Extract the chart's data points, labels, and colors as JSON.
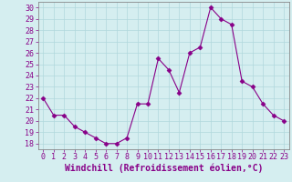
{
  "x": [
    0,
    1,
    2,
    3,
    4,
    5,
    6,
    7,
    8,
    9,
    10,
    11,
    12,
    13,
    14,
    15,
    16,
    17,
    18,
    19,
    20,
    21,
    22,
    23
  ],
  "y": [
    22,
    20.5,
    20.5,
    19.5,
    19,
    18.5,
    18,
    18,
    18.5,
    21.5,
    21.5,
    25.5,
    24.5,
    22.5,
    26,
    26.5,
    30,
    29,
    28.5,
    23.5,
    23,
    21.5,
    20.5,
    20
  ],
  "line_color": "#880088",
  "marker": "D",
  "marker_size": 2.5,
  "bg_color": "#d5eef0",
  "grid_color": "#b0d8dc",
  "xlabel": "Windchill (Refroidissement éolien,°C)",
  "xlabel_color": "#880088",
  "ylabel_ticks": [
    18,
    19,
    20,
    21,
    22,
    23,
    24,
    25,
    26,
    27,
    28,
    29,
    30
  ],
  "xlim": [
    -0.5,
    23.5
  ],
  "ylim": [
    17.5,
    30.5
  ],
  "xtick_labels": [
    "0",
    "1",
    "2",
    "3",
    "4",
    "5",
    "6",
    "7",
    "8",
    "9",
    "10",
    "11",
    "12",
    "13",
    "14",
    "15",
    "16",
    "17",
    "18",
    "19",
    "20",
    "21",
    "22",
    "23"
  ],
  "tick_color": "#880088",
  "axis_color": "#888888",
  "tick_fontsize": 6,
  "xlabel_fontsize": 7
}
